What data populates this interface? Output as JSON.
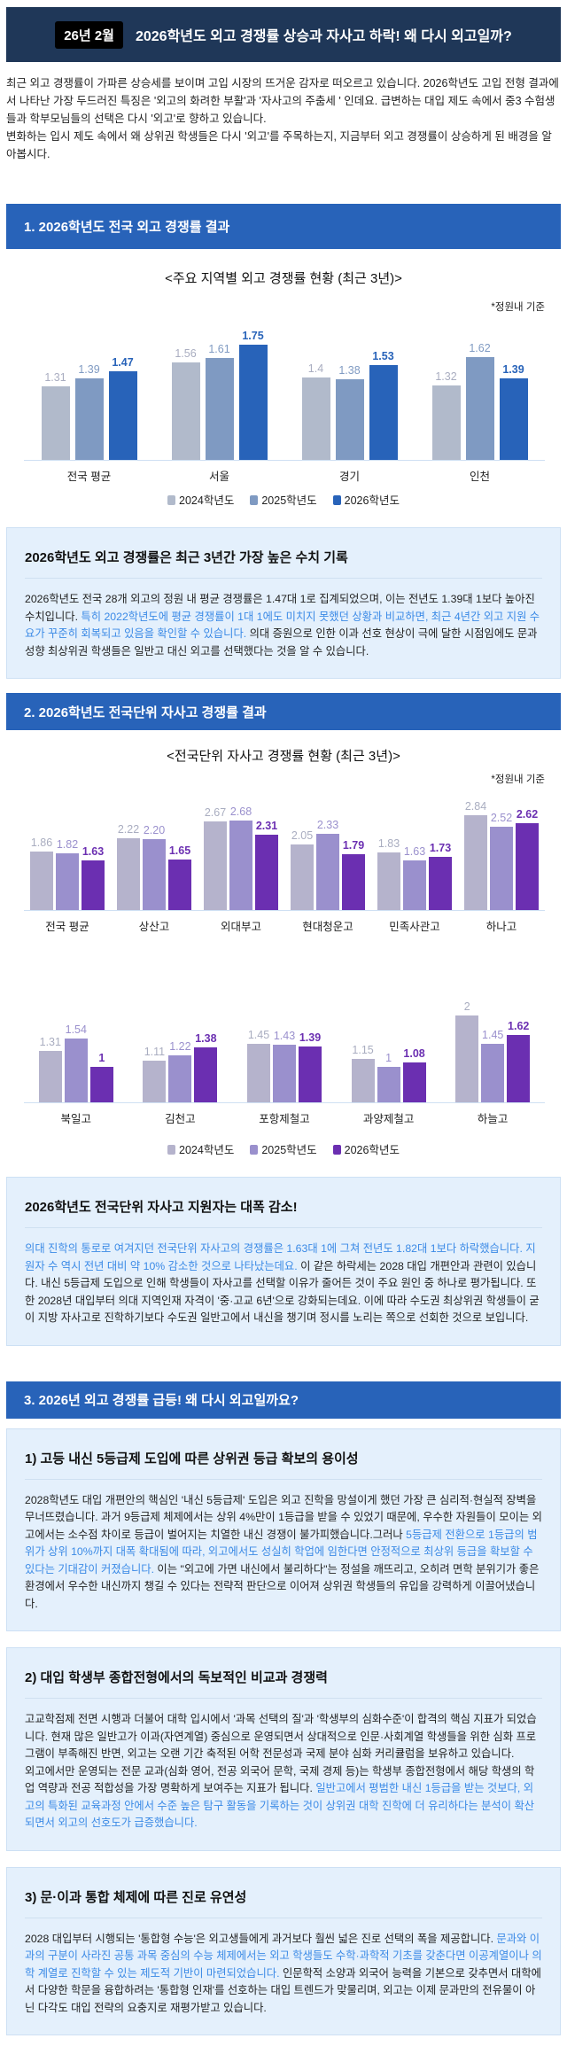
{
  "header": {
    "badge": "26년 2월",
    "title": "2026학년도 외고 경쟁률 상승과 자사고 하락! 왜 다시 외고일까?"
  },
  "intro": {
    "p1": "최근 외고 경쟁률이 가파른 상승세를 보이며 고입 시장의 뜨거운 감자로 떠오르고 있습니다. 2026학년도 고입 전형 결과에서 나타난 가장 두드러진 특징은 '외고의 화려한 부활'과 '자사고의 주춤세 ' 인데요. 급변하는 대입 제도 속에서 중3 수험생들과 학부모님들의 선택은 다시 '외고'로 향하고 있습니다.",
    "p2": "변화하는 입시 제도 속에서 왜 상위권 학생들은 다시 '외고'를 주목하는지, 지금부터 외고 경쟁률이 상승하게 된 배경을 알아봅시다."
  },
  "section1": {
    "heading": "1. 2026학년도 전국 외고 경쟁률 결과",
    "box": {
      "title": "2026학년도 외고 경쟁률은 최근 3년간 가장 높은 수치 기록",
      "segments": [
        {
          "t": "2026학년도 전국 28개 외고의 정원 내 평균 경쟁률은 1.47대 1로 집계되었으며, 이는 전년도 1.39대 1보다 높아진 수치입니다. ",
          "hl": false
        },
        {
          "t": "특히 2022학년도에 평균 경쟁률이 1대 1에도 미치지 못했던 상황과 비교하면, 최근 4년간 외고 지원 수요가 꾸준히 회복되고 있음을 확인할 수 있습니다.",
          "hl": true
        },
        {
          "t": " 의대 증원으로 인한 이과 선호 현상이 극에 달한 시점임에도 문과 성향 최상위권 학생들은 일반고 대신 외고를 선택했다는 것을 알 수 있습니다.",
          "hl": false
        }
      ]
    }
  },
  "section2": {
    "heading": "2. 2026학년도 전국단위 자사고 경쟁률 결과",
    "box": {
      "title": "2026학년도 전국단위 자사고 지원자는 대폭 감소!",
      "segments": [
        {
          "t": "의대 진학의 통로로 여겨지던 전국단위 자사고의 경쟁률은 1.63대 1에 그쳐 전년도 1.82대 1보다 하락했습니다. 지원자 수 역시 전년 대비 약 10% 감소한 것으로 나타났는데요.",
          "hl": true
        },
        {
          "t": " 이 같은 하락세는 2028 대입 개편안과 관련이 있습니다. 내신 5등급제 도입으로 인해 학생들이 자사고를 선택할 이유가 줄어든 것이 주요 원인 중 하나로 평가됩니다. 또한 2028년 대입부터 의대 지역인재 자격이 '중·고교 6년'으로 강화되는데요. 이에 따라 수도권 최상위권 학생들이 굳이 지방 자사고로 진학하기보다 수도권 일반고에서 내신을 챙기며 정시를 노리는 쪽으로 선회한 것으로 보입니다.",
          "hl": false
        }
      ]
    }
  },
  "section3": {
    "heading": "3. 2026년 외고 경쟁률 급등! 왜 다시 외고일까요?",
    "boxes": [
      {
        "title": "1) 고등 내신 5등급제 도입에 따른 상위권 등급 확보의 용이성",
        "segments": [
          {
            "t": "2028학년도 대입 개편안의 핵심인 '내신 5등급제' 도입은 외고 진학을 망설이게 했던 가장 큰 심리적·현실적 장벽을 무너뜨렸습니다. 과거 9등급제 체제에서는 상위 4%만이 1등급을 받을 수 있었기 때문에, 우수한 자원들이 모이는 외고에서는 소수점 차이로 등급이 벌어지는 치열한 내신 경쟁이 불가피했습니다.그러나 ",
            "hl": false
          },
          {
            "t": "5등급제 전환으로 1등급의 범위가 상위 10%까지 대폭 확대됨에 따라, 외고에서도 성실히 학업에 임한다면 안정적으로 최상위 등급을 확보할 수 있다는 기대감이 커졌습니다.",
            "hl": true
          },
          {
            "t": " 이는 \"외고에 가면 내신에서 불리하다\"는 정설을 깨뜨리고, 오히려 면학 분위기가 좋은 환경에서 우수한 내신까지 챙길 수 있다는 전략적 판단으로 이어져 상위권 학생들의 유입을 강력하게 이끌어냈습니다.",
            "hl": false
          }
        ]
      },
      {
        "title": "2) 대입 학생부 종합전형에서의 독보적인 비교과 경쟁력",
        "segments": [
          {
            "t": "고교학점제 전면 시행과 더불어 대학 입시에서 '과목 선택의 질'과 '학생부의 심화수준'이 합격의 핵심 지표가 되었습니다. 현재 많은 일반고가 이과(자연계열) 중심으로 운영되면서 상대적으로 인문·사회계열 학생들을 위한 심화 프로그램이 부족해진 반면, 외고는 오랜 기간 축적된 어학 전문성과 국제 분야 심화 커리큘럼을 보유하고 있습니다.\n외고에서만 운영되는 전문 교과(심화 영어, 전공 외국어 문학, 국제 경제 등)는 학생부 종합전형에서 해당 학생의 학업 역량과 전공 적합성을 가장 명확하게 보여주는 지표가 됩니다. ",
            "hl": false
          },
          {
            "t": "일반고에서 평범한 내신 1등급을 받는 것보다, 외고의 특화된 교육과정 안에서 수준 높은 탐구 활동을 기록하는 것이 상위권 대학 진학에 더 유리하다는 분석이 확산되면서 외고의 선호도가 급증했습니다.",
            "hl": true
          }
        ]
      },
      {
        "title": "3) 문·이과 통합 체제에 따른 진로 유연성",
        "segments": [
          {
            "t": "2028 대입부터 시행되는 '통합형 수능'은 외고생들에게 과거보다 훨씬 넓은 진로 선택의 폭을 제공합니다. ",
            "hl": false
          },
          {
            "t": "문과와 이과의 구분이 사라진 공통 과목 중심의 수능 체제에서는 외고 학생들도 수학·과학적 기초를 갖춘다면 이공계열이나 의학 계열로 진학할 수 있는 제도적 기반이 마련되었습니다.",
            "hl": true
          },
          {
            "t": " 인문학적 소양과 외국어 능력을 기본으로 갖추면서 대학에서 다양한 학문을 융합하려는 '통합형 인재'를 선호하는 대입 트렌드가 맞물리며, 외고는 이제 문과만의 전유물이 아닌 다각도 대입 전략의 요충지로 재평가받고 있습니다.",
            "hl": false
          }
        ]
      }
    ]
  },
  "chart_data": [
    {
      "type": "bar",
      "title": "<주요 지역별 외고 경쟁률 현황 (최근 3년)>",
      "note": "*정원내 기준",
      "categories": [
        "전국 평균",
        "서울",
        "경기",
        "인천"
      ],
      "series": [
        {
          "name": "2024학년도",
          "values": [
            1.31,
            1.56,
            1.4,
            1.32
          ],
          "color": "#b1bacb"
        },
        {
          "name": "2025학년도",
          "values": [
            1.39,
            1.61,
            1.38,
            1.62
          ],
          "color": "#7f9ac2"
        },
        {
          "name": "2026학년도",
          "values": [
            1.47,
            1.75,
            1.53,
            1.39
          ],
          "color": "#2863b9"
        }
      ],
      "ylim": [
        0.52,
        1.8
      ]
    },
    {
      "type": "bar",
      "title": "<전국단위 자사고 경쟁률 현황 (최근 3년)>",
      "note": "*정원내 기준",
      "categories": [
        "전국 평균",
        "상산고",
        "외대부고",
        "현대청운고",
        "민족사관고",
        "하나고",
        "북일고",
        "김천고",
        "포항제철고",
        "과양제철고",
        "하늘고"
      ],
      "series": [
        {
          "name": "2024학년도",
          "values": [
            1.86,
            2.22,
            2.67,
            2.05,
            1.83,
            2.84,
            1.31,
            1.11,
            1.45,
            1.15,
            2
          ],
          "color": "#b5b3cc"
        },
        {
          "name": "2025학년도",
          "values": [
            1.82,
            2.2,
            2.68,
            2.33,
            1.63,
            2.52,
            1.54,
            1.22,
            1.43,
            1,
            1.45
          ],
          "color": "#9a90cd"
        },
        {
          "name": "2026학년도",
          "values": [
            1.63,
            1.65,
            2.31,
            1.79,
            1.73,
            2.62,
            1,
            1.38,
            1.39,
            1.08,
            1.62
          ],
          "color": "#6b2fb1"
        }
      ],
      "value_labels": [
        [
          "1.86",
          "2.22",
          "2.67",
          "2.05",
          "1.83",
          "2.84",
          "1.31",
          "1.11",
          "1.45",
          "1.15",
          "2"
        ],
        [
          "1.82",
          "2.20",
          "2.68",
          "2.33",
          "1.63",
          "2.52",
          "1.54",
          "1.22",
          "1.43",
          "1",
          "1.45"
        ],
        [
          "1.63",
          "1.65",
          "2.31",
          "1.79",
          "1.73",
          "2.62",
          "1",
          "1.38",
          "1.39",
          "1.08",
          "1.62"
        ]
      ],
      "ylim": [
        0.3,
        2.9
      ]
    }
  ]
}
